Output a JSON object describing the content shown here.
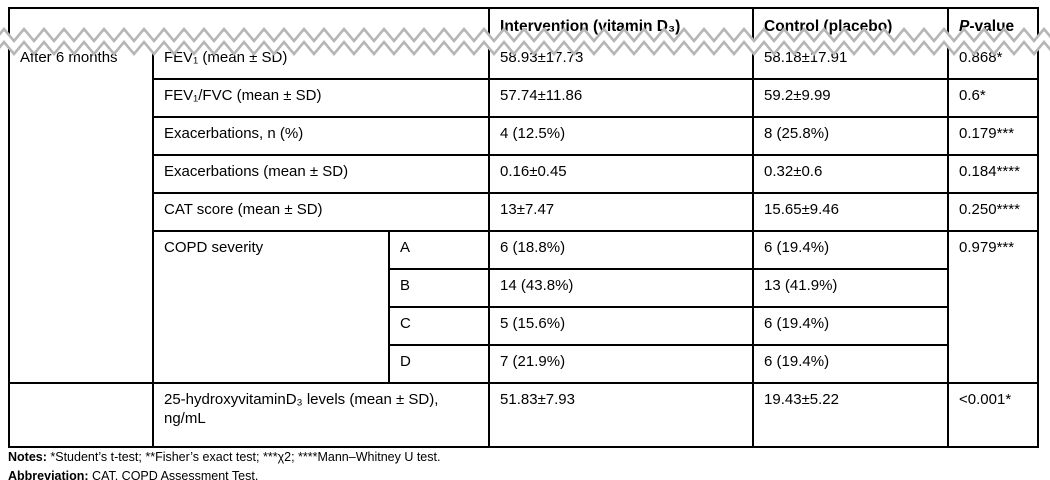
{
  "colors": {
    "border": "#000000",
    "zigzag_gray": "#b6b6b6",
    "text": "#000000",
    "background": "#ffffff"
  },
  "header": {
    "empty": "",
    "intervention": "Intervention (vitamin D₃)",
    "control": "Control (placebo)",
    "p_value": {
      "italic": "P",
      "rest": "-value"
    }
  },
  "body": {
    "period_label": "After 6 months",
    "rows": [
      {
        "label": "FEV₁ (mean ± SD)",
        "intervention": "58.93±17.73",
        "control": "58.18±17.91",
        "p": "0.868*"
      },
      {
        "label": "FEV₁/FVC (mean ± SD)",
        "intervention": "57.74±11.86",
        "control": "59.2±9.99",
        "p": "0.6*"
      },
      {
        "label": "Exacerbations, n (%)",
        "intervention": "4 (12.5%)",
        "control": "8 (25.8%)",
        "p": "0.179***"
      },
      {
        "label": "Exacerbations (mean ± SD)",
        "intervention": "0.16±0.45",
        "control": "0.32±0.6",
        "p": "0.184****"
      },
      {
        "label": "CAT score (mean ± SD)",
        "intervention": "13±7.47",
        "control": "15.65±9.46",
        "p": "0.250****"
      }
    ],
    "copd_severity": {
      "label": "COPD severity",
      "p": "0.979***",
      "rows": [
        {
          "grade": "A",
          "intervention": "6 (18.8%)",
          "control": "6 (19.4%)"
        },
        {
          "grade": "B",
          "intervention": "14 (43.8%)",
          "control": "13 (41.9%)"
        },
        {
          "grade": "C",
          "intervention": "5 (15.6%)",
          "control": "6 (19.4%)"
        },
        {
          "grade": "D",
          "intervention": "7 (21.9%)",
          "control": "6 (19.4%)"
        }
      ]
    },
    "vitamin_d_row": {
      "label": "25-hydroxyvitaminD₃ levels (mean ± SD), ng/mL",
      "intervention": "51.83±7.93",
      "control": "19.43±5.22",
      "p": "<0.001*"
    }
  },
  "footnotes": {
    "notes_label": "Notes:",
    "notes_text": " *Student’s t-test; **Fisher’s exact test; ***χ2; ****Mann–Whitney U test.",
    "abbreviation_label": "Abbreviation:",
    "abbreviation_text": " CAT, COPD Assessment Test."
  }
}
